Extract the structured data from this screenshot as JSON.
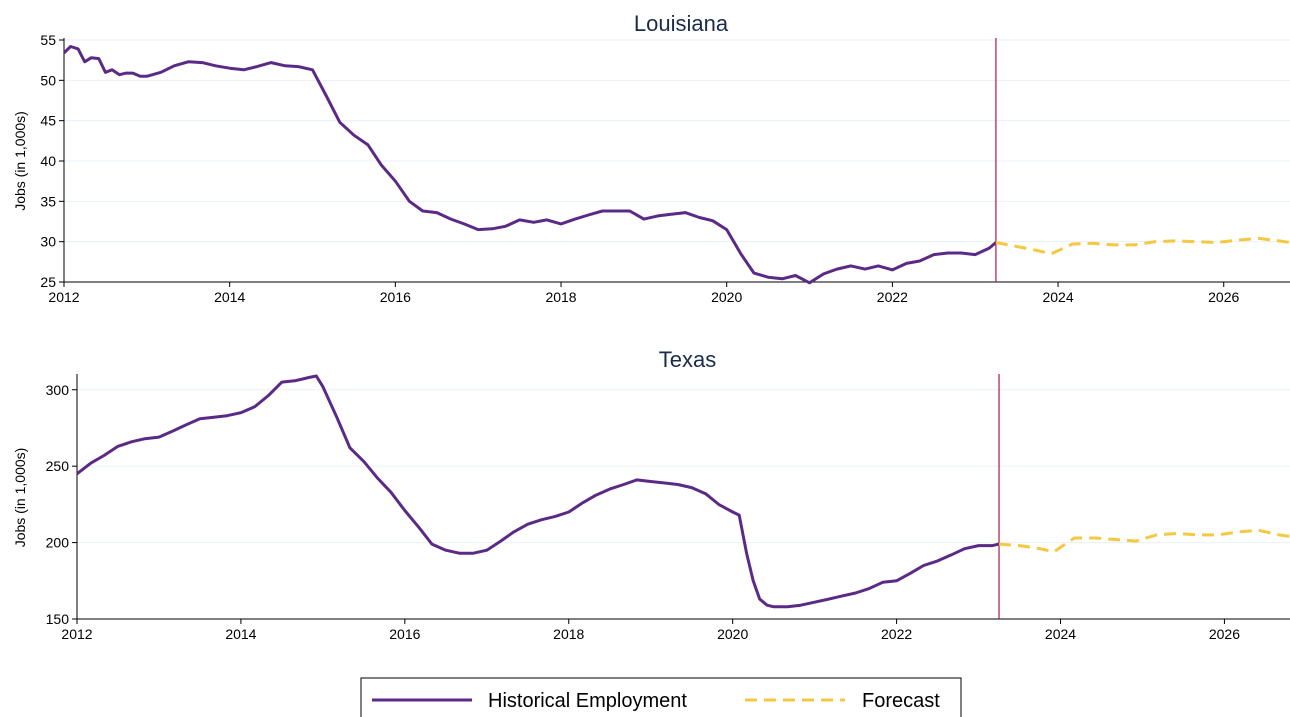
{
  "legend": {
    "historical_label": "Historical Employment",
    "forecast_label": "Forecast"
  },
  "colors": {
    "historical": "#5b2a86",
    "forecast": "#f5c842",
    "marker": "#b0174e",
    "title": "#1a2b4c"
  },
  "chart_data": [
    {
      "type": "line",
      "title": "Louisiana",
      "xlabel": "",
      "ylabel": "Jobs (in 1,000s)",
      "xlim": [
        2012,
        2026.8
      ],
      "ylim": [
        25,
        55
      ],
      "xticks": [
        2012,
        2014,
        2016,
        2018,
        2020,
        2022,
        2024,
        2026
      ],
      "yticks": [
        25,
        30,
        35,
        40,
        45,
        50,
        55
      ],
      "grid": true,
      "forecast_start": 2023.25,
      "series": [
        {
          "name": "Historical Employment",
          "style": "solid",
          "x": [
            2012.0,
            2012.08,
            2012.17,
            2012.25,
            2012.33,
            2012.42,
            2012.5,
            2012.58,
            2012.67,
            2012.75,
            2012.83,
            2012.92,
            2013.0,
            2013.17,
            2013.33,
            2013.5,
            2013.67,
            2013.83,
            2014.0,
            2014.17,
            2014.33,
            2014.5,
            2014.67,
            2014.83,
            2015.0,
            2015.17,
            2015.33,
            2015.5,
            2015.67,
            2015.83,
            2016.0,
            2016.17,
            2016.33,
            2016.5,
            2016.67,
            2016.83,
            2017.0,
            2017.17,
            2017.33,
            2017.5,
            2017.67,
            2017.83,
            2018.0,
            2018.17,
            2018.33,
            2018.5,
            2018.67,
            2018.83,
            2019.0,
            2019.17,
            2019.33,
            2019.5,
            2019.67,
            2019.83,
            2020.0,
            2020.17,
            2020.33,
            2020.5,
            2020.67,
            2020.83,
            2021.0,
            2021.17,
            2021.33,
            2021.5,
            2021.67,
            2021.83,
            2022.0,
            2022.17,
            2022.33,
            2022.5,
            2022.67,
            2022.83,
            2023.0,
            2023.17,
            2023.25
          ],
          "values": [
            53.4,
            54.2,
            53.9,
            52.3,
            52.8,
            52.7,
            51.0,
            51.3,
            50.7,
            50.9,
            50.9,
            50.5,
            50.5,
            51.0,
            51.8,
            52.3,
            52.2,
            51.8,
            51.5,
            51.3,
            51.7,
            52.2,
            51.8,
            51.7,
            51.3,
            48.0,
            44.8,
            43.2,
            42.0,
            39.5,
            37.5,
            35.0,
            33.8,
            33.6,
            32.8,
            32.2,
            31.5,
            31.6,
            31.9,
            32.7,
            32.4,
            32.7,
            32.2,
            32.8,
            33.3,
            33.8,
            33.8,
            33.8,
            32.8,
            33.2,
            33.4,
            33.6,
            33.0,
            32.6,
            31.5,
            28.5,
            26.1,
            25.6,
            25.4,
            25.8,
            24.9,
            26.0,
            26.6,
            27.0,
            26.6,
            27.0,
            26.5,
            27.3,
            27.6,
            28.4,
            28.6,
            28.6,
            28.4,
            29.2,
            29.9
          ]
        },
        {
          "name": "Forecast",
          "style": "dashed",
          "x": [
            2023.25,
            2023.5,
            2023.75,
            2023.92,
            2024.17,
            2024.42,
            2024.67,
            2024.92,
            2025.17,
            2025.42,
            2025.67,
            2025.92,
            2026.17,
            2026.42,
            2026.67,
            2026.8
          ],
          "values": [
            29.9,
            29.4,
            28.9,
            28.5,
            29.7,
            29.8,
            29.6,
            29.6,
            30.0,
            30.1,
            30.0,
            29.9,
            30.2,
            30.4,
            30.1,
            29.9
          ]
        }
      ]
    },
    {
      "type": "line",
      "title": "Texas",
      "xlabel": "",
      "ylabel": "Jobs (in 1,000s)",
      "xlim": [
        2012,
        2026.8
      ],
      "ylim": [
        150,
        309
      ],
      "xticks": [
        2012,
        2014,
        2016,
        2018,
        2020,
        2022,
        2024,
        2026
      ],
      "yticks": [
        150,
        200,
        250,
        300
      ],
      "grid": true,
      "forecast_start": 2023.25,
      "series": [
        {
          "name": "Historical Employment",
          "style": "solid",
          "x": [
            2012.0,
            2012.17,
            2012.33,
            2012.5,
            2012.67,
            2012.83,
            2013.0,
            2013.17,
            2013.33,
            2013.5,
            2013.67,
            2013.83,
            2014.0,
            2014.17,
            2014.33,
            2014.5,
            2014.67,
            2014.83,
            2014.92,
            2015.0,
            2015.17,
            2015.33,
            2015.5,
            2015.67,
            2015.83,
            2016.0,
            2016.17,
            2016.33,
            2016.5,
            2016.67,
            2016.83,
            2017.0,
            2017.17,
            2017.33,
            2017.5,
            2017.67,
            2017.83,
            2018.0,
            2018.17,
            2018.33,
            2018.5,
            2018.67,
            2018.83,
            2019.0,
            2019.17,
            2019.33,
            2019.5,
            2019.67,
            2019.83,
            2020.0,
            2020.08,
            2020.17,
            2020.25,
            2020.33,
            2020.42,
            2020.5,
            2020.67,
            2020.83,
            2021.0,
            2021.17,
            2021.33,
            2021.5,
            2021.67,
            2021.83,
            2022.0,
            2022.17,
            2022.33,
            2022.5,
            2022.67,
            2022.83,
            2023.0,
            2023.17,
            2023.25
          ],
          "values": [
            245,
            252,
            257,
            263,
            266,
            268,
            269,
            273,
            277,
            281,
            282,
            283,
            285,
            289,
            296,
            305,
            306,
            308,
            309,
            302,
            282,
            262,
            253,
            242,
            233,
            221,
            210,
            199,
            195,
            193,
            193,
            195,
            201,
            207,
            212,
            215,
            217,
            220,
            226,
            231,
            235,
            238,
            241,
            240,
            239,
            238,
            236,
            232,
            225,
            220,
            218,
            193,
            175,
            163,
            159,
            158,
            158,
            159,
            161,
            163,
            165,
            167,
            170,
            174,
            175,
            180,
            185,
            188,
            192,
            196,
            198,
            198,
            199
          ]
        },
        {
          "name": "Forecast",
          "style": "dashed",
          "x": [
            2023.25,
            2023.5,
            2023.75,
            2023.92,
            2024.17,
            2024.42,
            2024.67,
            2024.92,
            2025.17,
            2025.42,
            2025.67,
            2025.92,
            2026.17,
            2026.42,
            2026.67,
            2026.8
          ],
          "values": [
            199,
            198,
            196,
            194,
            203,
            203,
            202,
            201,
            205,
            206,
            205,
            205,
            207,
            208,
            205,
            204
          ]
        }
      ]
    }
  ]
}
